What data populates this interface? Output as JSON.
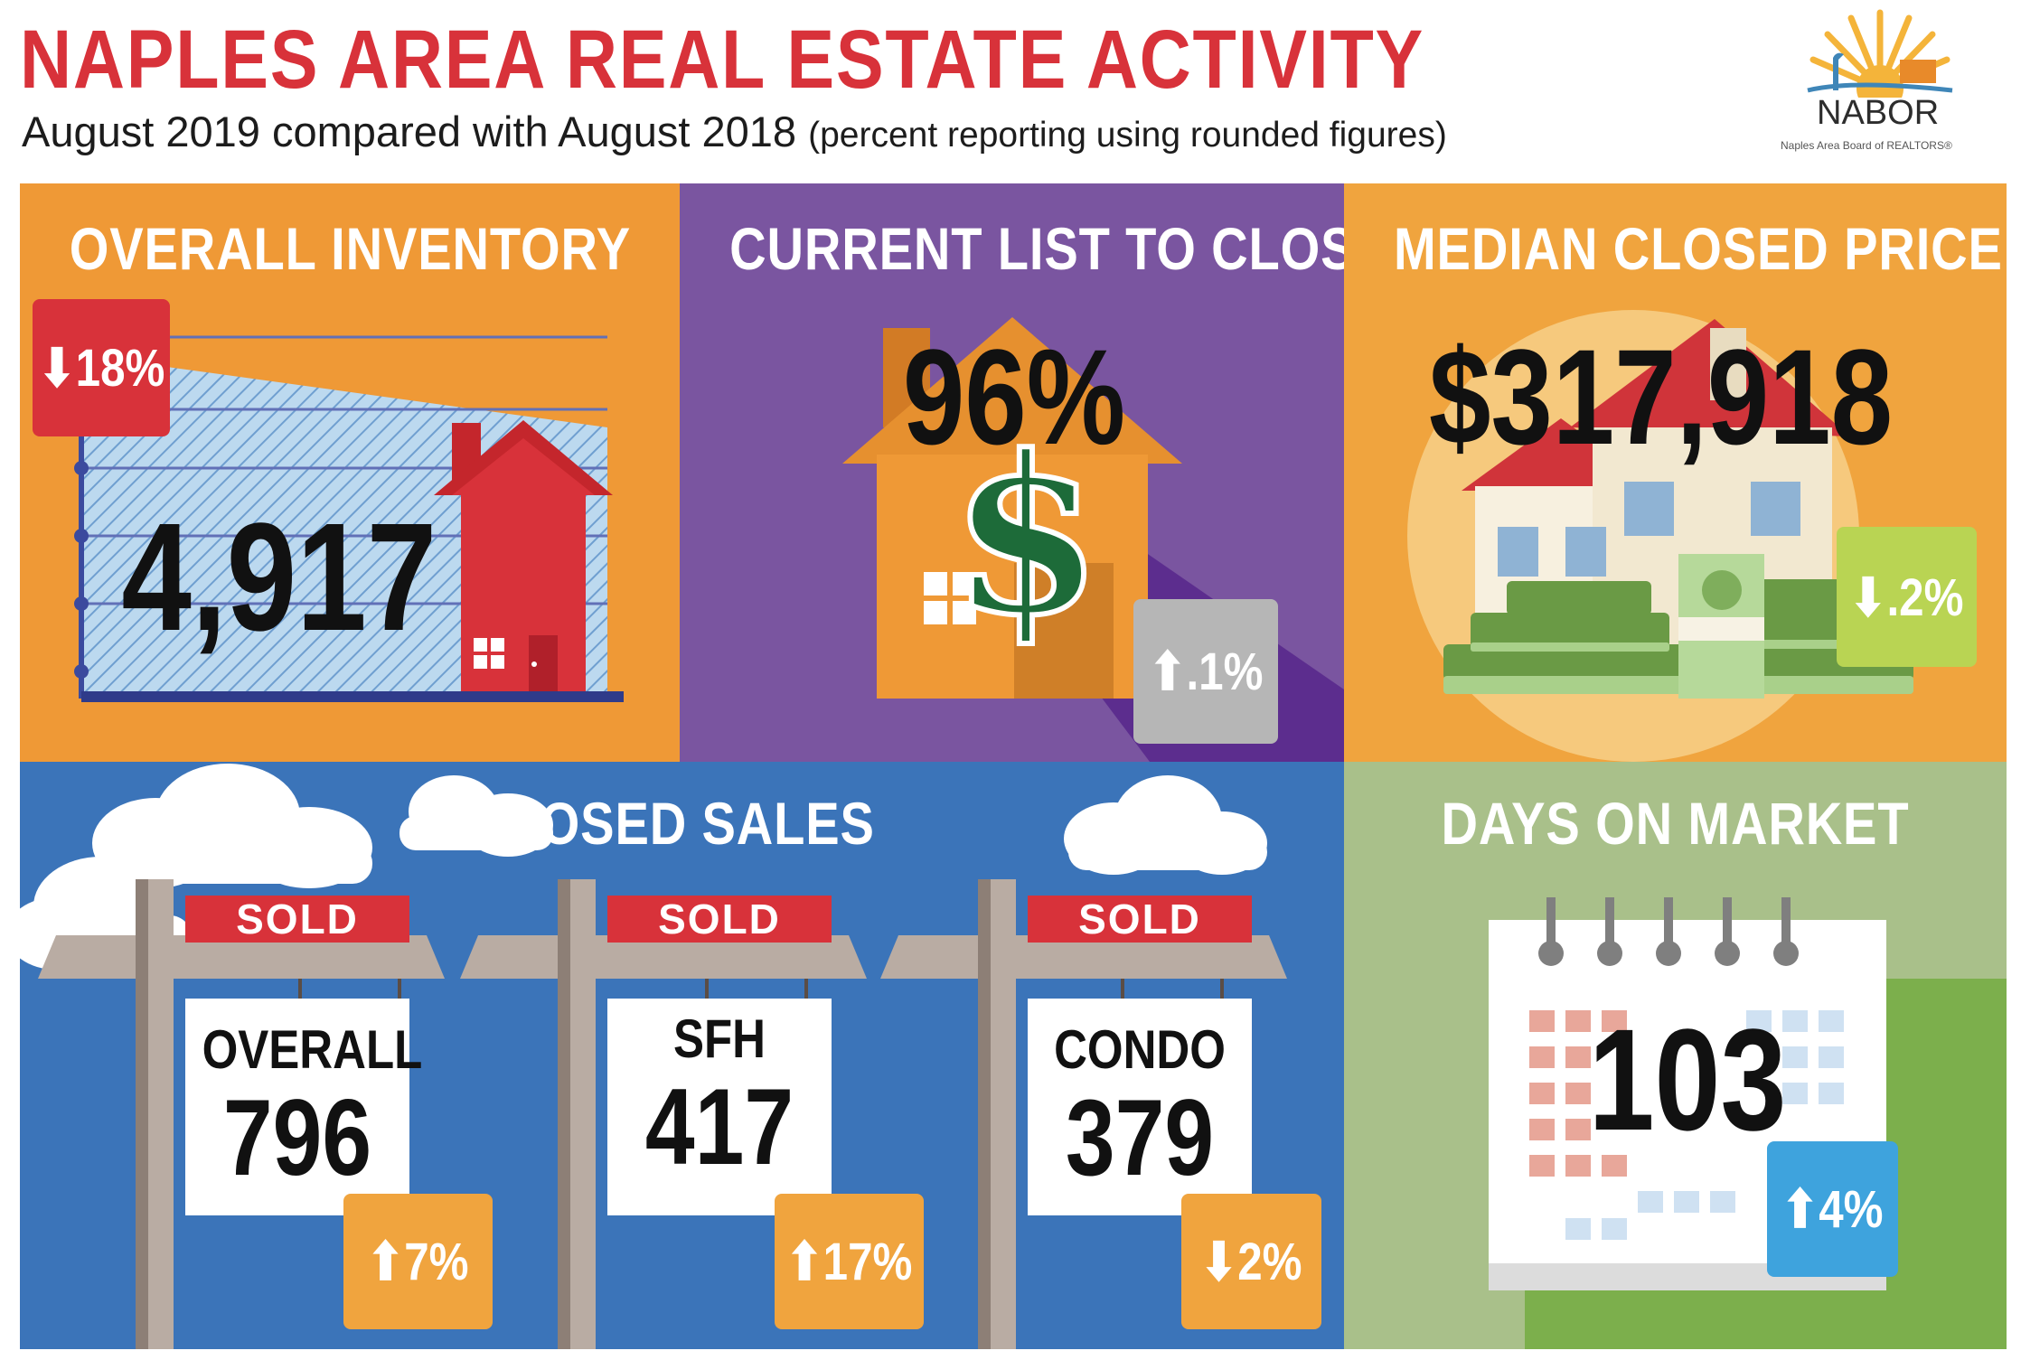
{
  "header": {
    "title": "NAPLES AREA REAL ESTATE ACTIVITY",
    "subtitle": "August 2019 compared with August 2018",
    "subtitle_note": "(percent reporting using rounded figures)"
  },
  "logo": {
    "brand": "NABOR",
    "tagline": "Naples Area Board of REALTORS®"
  },
  "colors": {
    "red": "#d8323a",
    "orange": "#ef9936",
    "purple": "#7a55a0",
    "blue": "#3b74b9",
    "green": "#a9c08a",
    "badge_gray": "#b6b6b6",
    "badge_lime": "#b9d453",
    "badge_sky": "#3ea3dd"
  },
  "panels": {
    "inventory": {
      "title": "OVERALL INVENTORY",
      "value": "4,917",
      "change": "18%",
      "direction": "down"
    },
    "list_to_closed": {
      "title": "CURRENT LIST TO CLOSED",
      "value": "96%",
      "change": ".1%",
      "direction": "up",
      "icon": "dollar-icon"
    },
    "median_price": {
      "title": "MEDIAN CLOSED PRICE",
      "value": "$317,918",
      "change": ".2%",
      "direction": "down"
    },
    "closed_sales": {
      "title": "CLOSED SALES",
      "signs": [
        {
          "tag": "SOLD",
          "label": "OVERALL",
          "value": "796",
          "change": "7%",
          "direction": "up"
        },
        {
          "tag": "SOLD",
          "label": "SFH",
          "value": "417",
          "change": "17%",
          "direction": "up"
        },
        {
          "tag": "SOLD",
          "label": "CONDO",
          "value": "379",
          "change": "2%",
          "direction": "down"
        }
      ]
    },
    "days_on_market": {
      "title": "DAYS ON MARKET",
      "value": "103",
      "change": "4%",
      "direction": "up"
    }
  }
}
